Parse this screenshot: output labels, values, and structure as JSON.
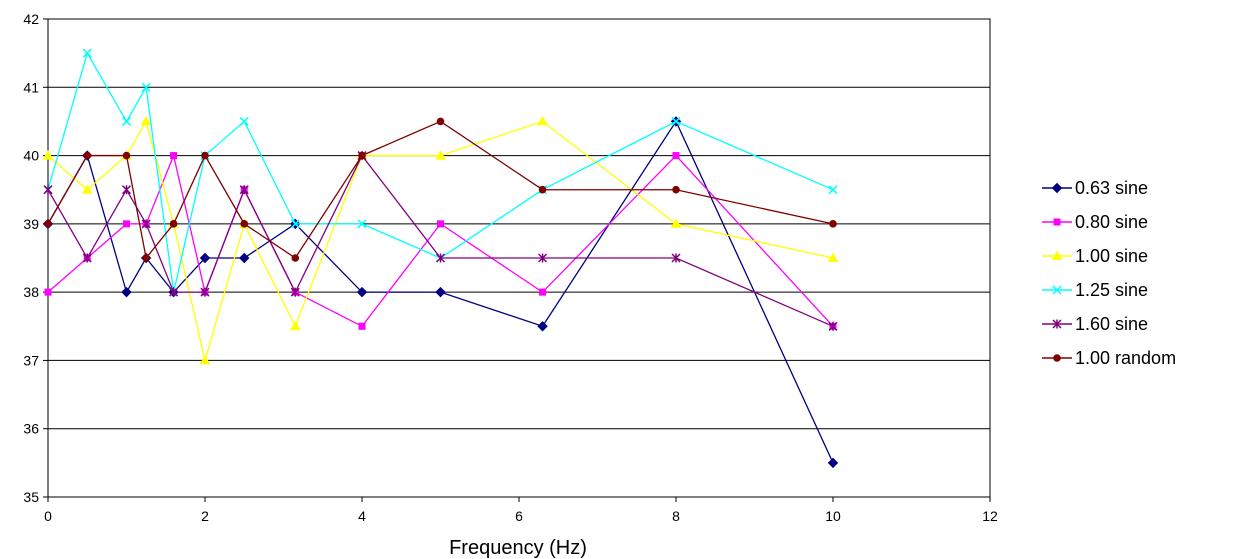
{
  "chart_data": {
    "type": "line",
    "title": "",
    "xlabel": "Frequency (Hz)",
    "ylabel": "",
    "xlim": [
      0,
      12
    ],
    "ylim": [
      35,
      42
    ],
    "x_ticks": [
      "0",
      "2",
      "4",
      "6",
      "8",
      "10",
      "12"
    ],
    "y_ticks": [
      "35",
      "36",
      "37",
      "38",
      "39",
      "40",
      "41",
      "42"
    ],
    "grid": "horizontal",
    "legend_position": "right",
    "x": [
      0,
      0.5,
      1,
      1.25,
      1.6,
      2,
      2.5,
      3.15,
      4,
      5,
      6.3,
      8,
      10
    ],
    "series": [
      {
        "name": "0.63 sine",
        "color": "#000080",
        "marker": "diamond",
        "values": [
          39,
          40,
          38,
          38.5,
          38,
          38.5,
          38.5,
          39,
          38,
          38,
          37.5,
          40.5,
          35.5
        ]
      },
      {
        "name": "0.80 sine",
        "color": "#FF00FF",
        "marker": "square",
        "values": [
          38,
          38.5,
          39,
          39,
          40,
          38,
          39.5,
          38,
          37.5,
          39,
          38,
          40,
          37.5
        ]
      },
      {
        "name": "1.00 sine",
        "color": "#FFFF00",
        "marker": "triangle",
        "values": [
          40,
          39.5,
          40,
          40.5,
          39,
          37,
          39,
          37.5,
          40,
          40,
          40.5,
          39,
          38.5
        ]
      },
      {
        "name": "1.25 sine",
        "color": "#00FFFF",
        "marker": "x",
        "values": [
          39.5,
          41.5,
          40.5,
          41,
          38,
          40,
          40.5,
          39,
          39,
          38.5,
          39.5,
          40.5,
          39.5
        ]
      },
      {
        "name": "1.60 sine",
        "color": "#800080",
        "marker": "star",
        "values": [
          39.5,
          38.5,
          39.5,
          39,
          38,
          38,
          39.5,
          38,
          40,
          38.5,
          38.5,
          38.5,
          37.5
        ]
      },
      {
        "name": "1.00 random",
        "color": "#800000",
        "marker": "circle",
        "values": [
          39,
          40,
          40,
          38.5,
          39,
          40,
          39,
          38.5,
          40,
          40.5,
          39.5,
          39.5,
          39
        ]
      }
    ]
  }
}
